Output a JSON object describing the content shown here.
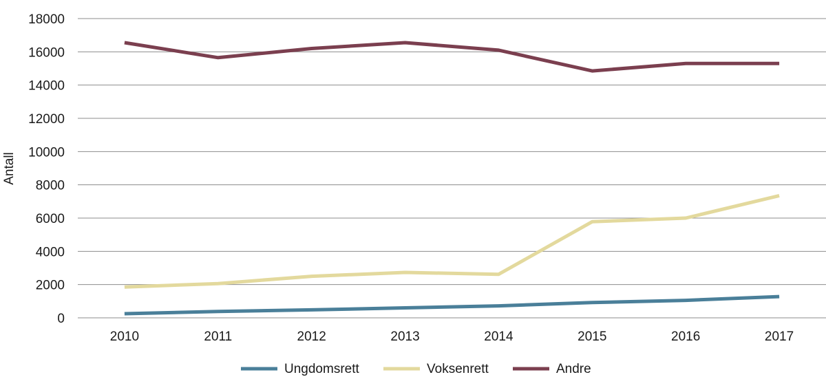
{
  "chart_data": {
    "type": "line",
    "title": "",
    "xlabel": "",
    "ylabel": "Antall",
    "categories": [
      "2010",
      "2011",
      "2012",
      "2013",
      "2014",
      "2015",
      "2016",
      "2017"
    ],
    "ylim": [
      0,
      18000
    ],
    "yticks": [
      "0",
      "2000",
      "4000",
      "6000",
      "8000",
      "10000",
      "12000",
      "14000",
      "16000",
      "18000"
    ],
    "grid": true,
    "legend_position": "bottom",
    "series": [
      {
        "name": "Ungdomsrett",
        "color": "#4a7f99",
        "values": [
          250,
          380,
          480,
          600,
          720,
          920,
          1050,
          1280
        ]
      },
      {
        "name": "Voksenrett",
        "color": "#e3d99d",
        "values": [
          1850,
          2060,
          2500,
          2730,
          2620,
          5780,
          6000,
          7350
        ]
      },
      {
        "name": "Andre",
        "color": "#7b3f4f",
        "values": [
          16550,
          15650,
          16200,
          16550,
          16100,
          14850,
          15300,
          15300
        ]
      }
    ]
  }
}
